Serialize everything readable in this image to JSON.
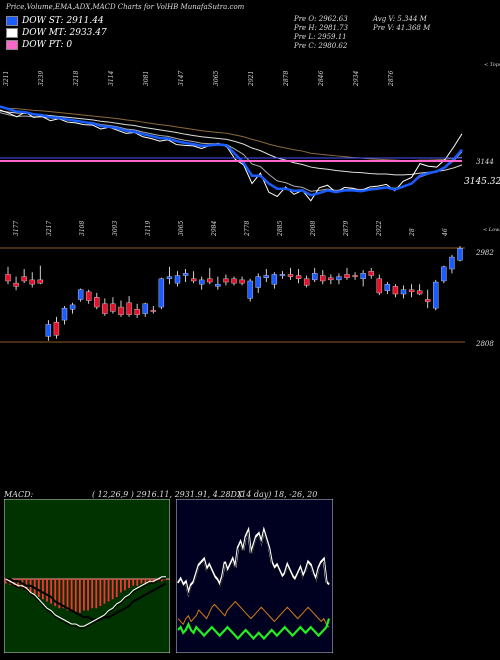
{
  "header": {
    "title": "Price,Volume,EMA,ADX,MACD Charts for VolHB MunafaSutra.com",
    "legend": [
      {
        "label": "DOW ST: 2911.44",
        "color": "#1a5cff"
      },
      {
        "label": "DOW MT: 2933.47",
        "color": "#ffffff"
      },
      {
        "label": "DOW PT: 0",
        "color": "#ff66cc"
      }
    ],
    "prices_left": [
      "Pre   O: 2962.63",
      "Pre   H: 2981.73",
      "Pre   L: 2959.11",
      "Pre   C: 2980.62"
    ],
    "prices_right": [
      "Avg V: 5.344  M",
      "Pre   V: 41.368  M"
    ]
  },
  "chart_data": [
    {
      "type": "line",
      "name": "ema-panel",
      "top_labels": [
        "3211",
        "3239",
        "3218",
        "3114",
        "3081",
        "3147",
        "3065",
        "2921",
        "2878",
        "2846",
        "2934",
        "2876"
      ],
      "bottom_labels": [
        "3177",
        "3217",
        "3108",
        "3093",
        "3119",
        "3065",
        "2984",
        "2778",
        "2885",
        "2908",
        "2879",
        "2922",
        "28",
        "46"
      ],
      "right_labels": [
        "< Tops",
        "3144",
        "3145.32",
        "< Lows"
      ],
      "series": [
        {
          "role": "price",
          "values": [
            3212,
            3205,
            3196,
            3207,
            3195,
            3197,
            3187,
            3192,
            3184,
            3182,
            3178,
            3177,
            3168,
            3172,
            3165,
            3158,
            3160,
            3150,
            3146,
            3140,
            3143,
            3132,
            3130,
            3129,
            3123,
            3130,
            3135,
            3127,
            3098,
            3085,
            3042,
            3066,
            3022,
            3012,
            3034,
            3017,
            3026,
            3002,
            3032,
            3038,
            3021,
            3033,
            3031,
            3026,
            3034,
            3036,
            3040,
            3025,
            3047,
            3056,
            3088,
            3082,
            3080,
            3098,
            3126,
            3157
          ]
        },
        {
          "role": "ema-short",
          "values": [
            3206,
            3201,
            3197,
            3198,
            3196,
            3196,
            3193,
            3192,
            3190,
            3188,
            3185,
            3183,
            3178,
            3176,
            3173,
            3168,
            3166,
            3161,
            3157,
            3153,
            3151,
            3146,
            3142,
            3139,
            3135,
            3134,
            3134,
            3132,
            3121,
            3109,
            3087,
            3081,
            3063,
            3048,
            3044,
            3036,
            3033,
            3024,
            3026,
            3029,
            3026,
            3028,
            3029,
            3028,
            3030,
            3032,
            3034,
            3031,
            3036,
            3042,
            3057,
            3064,
            3069,
            3079,
            3094,
            3115
          ]
        },
        {
          "role": "ema-mid",
          "values": [
            3210,
            3207,
            3205,
            3204,
            3202,
            3201,
            3199,
            3197,
            3195,
            3193,
            3191,
            3189,
            3186,
            3184,
            3181,
            3178,
            3176,
            3172,
            3169,
            3166,
            3163,
            3160,
            3156,
            3153,
            3150,
            3148,
            3146,
            3144,
            3139,
            3133,
            3124,
            3118,
            3109,
            3101,
            3096,
            3090,
            3086,
            3080,
            3077,
            3075,
            3072,
            3070,
            3068,
            3067,
            3065,
            3064,
            3064,
            3062,
            3062,
            3063,
            3066,
            3068,
            3070,
            3073,
            3078,
            3085
          ]
        },
        {
          "role": "ema-long",
          "values": [
            3218,
            3216,
            3215,
            3213,
            3211,
            3210,
            3208,
            3206,
            3204,
            3202,
            3200,
            3198,
            3196,
            3194,
            3192,
            3189,
            3187,
            3184,
            3181,
            3178,
            3176,
            3173,
            3170,
            3167,
            3164,
            3162,
            3160,
            3158,
            3154,
            3150,
            3144,
            3139,
            3133,
            3128,
            3124,
            3120,
            3117,
            3112,
            3110,
            3108,
            3106,
            3104,
            3102,
            3101,
            3099,
            3098,
            3097,
            3096,
            3095,
            3095,
            3096,
            3096,
            3097,
            3098,
            3100,
            3103
          ]
        },
        {
          "role": "ema-blue",
          "values": [
            3220,
            3214,
            3208,
            3207,
            3202,
            3200,
            3195,
            3194,
            3190,
            3187,
            3184,
            3181,
            3175,
            3173,
            3170,
            3164,
            3162,
            3156,
            3152,
            3147,
            3146,
            3140,
            3136,
            3133,
            3129,
            3130,
            3132,
            3130,
            3110,
            3090,
            3060,
            3060,
            3042,
            3030,
            3030,
            3025,
            3026,
            3015,
            3020,
            3026,
            3022,
            3026,
            3026,
            3024,
            3028,
            3030,
            3033,
            3028,
            3035,
            3042,
            3060,
            3066,
            3070,
            3080,
            3098,
            3120
          ]
        }
      ],
      "ylim": [
        2990,
        3235
      ]
    },
    {
      "type": "candlestick",
      "name": "price-panel",
      "right_labels": [
        "2982",
        "2808"
      ],
      "ylim": [
        2795,
        2990
      ],
      "candles": [
        {
          "o": 2934,
          "h": 2948,
          "l": 2916,
          "c": 2922
        },
        {
          "o": 2918,
          "h": 2930,
          "l": 2905,
          "c": 2912
        },
        {
          "o": 2930,
          "h": 2944,
          "l": 2918,
          "c": 2922
        },
        {
          "o": 2924,
          "h": 2938,
          "l": 2910,
          "c": 2916
        },
        {
          "o": 2924,
          "h": 2950,
          "l": 2916,
          "c": 2918
        },
        {
          "o": 2820,
          "h": 2850,
          "l": 2812,
          "c": 2842
        },
        {
          "o": 2846,
          "h": 2856,
          "l": 2816,
          "c": 2822
        },
        {
          "o": 2850,
          "h": 2876,
          "l": 2842,
          "c": 2872
        },
        {
          "o": 2870,
          "h": 2882,
          "l": 2862,
          "c": 2878
        },
        {
          "o": 2888,
          "h": 2908,
          "l": 2884,
          "c": 2906
        },
        {
          "o": 2902,
          "h": 2906,
          "l": 2880,
          "c": 2886
        },
        {
          "o": 2892,
          "h": 2900,
          "l": 2870,
          "c": 2874
        },
        {
          "o": 2880,
          "h": 2890,
          "l": 2858,
          "c": 2862
        },
        {
          "o": 2880,
          "h": 2892,
          "l": 2862,
          "c": 2866
        },
        {
          "o": 2874,
          "h": 2886,
          "l": 2856,
          "c": 2860
        },
        {
          "o": 2882,
          "h": 2894,
          "l": 2856,
          "c": 2860
        },
        {
          "o": 2870,
          "h": 2880,
          "l": 2854,
          "c": 2860
        },
        {
          "o": 2862,
          "h": 2882,
          "l": 2856,
          "c": 2880
        },
        {
          "o": 2868,
          "h": 2876,
          "l": 2862,
          "c": 2866
        },
        {
          "o": 2874,
          "h": 2928,
          "l": 2870,
          "c": 2926
        },
        {
          "o": 2926,
          "h": 2948,
          "l": 2916,
          "c": 2930
        },
        {
          "o": 2918,
          "h": 2940,
          "l": 2912,
          "c": 2932
        },
        {
          "o": 2932,
          "h": 2944,
          "l": 2920,
          "c": 2936
        },
        {
          "o": 2926,
          "h": 2940,
          "l": 2918,
          "c": 2922
        },
        {
          "o": 2916,
          "h": 2930,
          "l": 2906,
          "c": 2924
        },
        {
          "o": 2926,
          "h": 2946,
          "l": 2916,
          "c": 2920
        },
        {
          "o": 2912,
          "h": 2930,
          "l": 2906,
          "c": 2916
        },
        {
          "o": 2926,
          "h": 2934,
          "l": 2914,
          "c": 2920
        },
        {
          "o": 2926,
          "h": 2930,
          "l": 2914,
          "c": 2918
        },
        {
          "o": 2924,
          "h": 2930,
          "l": 2914,
          "c": 2918
        },
        {
          "o": 2890,
          "h": 2926,
          "l": 2884,
          "c": 2922
        },
        {
          "o": 2910,
          "h": 2936,
          "l": 2900,
          "c": 2930
        },
        {
          "o": 2928,
          "h": 2944,
          "l": 2920,
          "c": 2932
        },
        {
          "o": 2916,
          "h": 2938,
          "l": 2908,
          "c": 2934
        },
        {
          "o": 2932,
          "h": 2940,
          "l": 2926,
          "c": 2934
        },
        {
          "o": 2934,
          "h": 2946,
          "l": 2924,
          "c": 2930
        },
        {
          "o": 2932,
          "h": 2944,
          "l": 2918,
          "c": 2926
        },
        {
          "o": 2926,
          "h": 2932,
          "l": 2910,
          "c": 2914
        },
        {
          "o": 2924,
          "h": 2946,
          "l": 2920,
          "c": 2936
        },
        {
          "o": 2932,
          "h": 2942,
          "l": 2916,
          "c": 2922
        },
        {
          "o": 2928,
          "h": 2934,
          "l": 2916,
          "c": 2924
        },
        {
          "o": 2924,
          "h": 2936,
          "l": 2916,
          "c": 2930
        },
        {
          "o": 2934,
          "h": 2946,
          "l": 2924,
          "c": 2928
        },
        {
          "o": 2932,
          "h": 2938,
          "l": 2924,
          "c": 2930
        },
        {
          "o": 2926,
          "h": 2942,
          "l": 2912,
          "c": 2936
        },
        {
          "o": 2940,
          "h": 2946,
          "l": 2926,
          "c": 2932
        },
        {
          "o": 2926,
          "h": 2934,
          "l": 2896,
          "c": 2900
        },
        {
          "o": 2904,
          "h": 2920,
          "l": 2898,
          "c": 2916
        },
        {
          "o": 2912,
          "h": 2916,
          "l": 2892,
          "c": 2898
        },
        {
          "o": 2898,
          "h": 2914,
          "l": 2890,
          "c": 2906
        },
        {
          "o": 2906,
          "h": 2916,
          "l": 2892,
          "c": 2902
        },
        {
          "o": 2904,
          "h": 2916,
          "l": 2896,
          "c": 2898
        },
        {
          "o": 2888,
          "h": 2906,
          "l": 2872,
          "c": 2884
        },
        {
          "o": 2872,
          "h": 2924,
          "l": 2868,
          "c": 2920
        },
        {
          "o": 2922,
          "h": 2950,
          "l": 2918,
          "c": 2948
        },
        {
          "o": 2944,
          "h": 2970,
          "l": 2936,
          "c": 2966
        },
        {
          "o": 2960,
          "h": 2986,
          "l": 2958,
          "c": 2982
        }
      ]
    },
    {
      "type": "macd",
      "name": "macd-panel",
      "label": "MACD:",
      "params": "( 12,26,9 ) 2916.11,  2931.91,  4.28DX",
      "hist": [
        -2,
        -2.5,
        -3,
        -3.5,
        -4,
        -5,
        -6,
        -7,
        -8,
        -9,
        -10,
        -11,
        -12,
        -13,
        -13,
        -14,
        -14,
        -15,
        -15,
        -14,
        -14,
        -13,
        -13,
        -12,
        -11,
        -10,
        -9,
        -8,
        -6,
        -5,
        -4,
        -3,
        -3,
        -2,
        -2,
        -1.5,
        -1.5,
        -1,
        -1,
        -0.5
      ],
      "macd": [
        0,
        -1,
        -2,
        -3,
        -3,
        -4,
        -6,
        -7,
        -9,
        -11,
        -13,
        -14,
        -16,
        -17,
        -18,
        -19,
        -20,
        -20,
        -21,
        -21,
        -20,
        -19,
        -18,
        -17,
        -16,
        -14,
        -13,
        -11,
        -10,
        -8,
        -7,
        -5,
        -4,
        -3,
        -2,
        -1,
        -1,
        0,
        1,
        1
      ],
      "signal": [
        0,
        0,
        -1,
        -1,
        -2,
        -3,
        -3,
        -4,
        -5,
        -6,
        -7,
        -8,
        -10,
        -11,
        -12,
        -13,
        -14,
        -15,
        -16,
        -17,
        -17,
        -18,
        -18,
        -18,
        -17,
        -17,
        -16,
        -15,
        -14,
        -13,
        -12,
        -10,
        -9,
        -8,
        -7,
        -6,
        -5,
        -4,
        -3,
        -2
      ],
      "ylim": [
        -30,
        10
      ]
    },
    {
      "type": "adx",
      "name": "adx-panel",
      "params": "(14 day)  18,  -26,  20",
      "white": [
        45,
        48,
        44,
        46,
        38,
        44,
        46,
        52,
        58,
        60,
        62,
        55,
        58,
        54,
        50,
        48,
        44,
        50,
        60,
        54,
        58,
        62,
        56,
        70,
        74,
        68,
        78,
        82,
        66,
        72,
        78,
        80,
        74,
        82,
        76,
        70,
        60,
        56,
        58,
        54,
        50,
        52,
        58,
        54,
        50,
        48,
        52,
        56,
        50,
        54,
        60,
        58,
        52,
        48,
        56,
        60,
        62,
        46,
        44
      ],
      "orange": [
        20,
        18,
        16,
        20,
        22,
        18,
        20,
        22,
        26,
        24,
        22,
        20,
        24,
        28,
        30,
        28,
        26,
        24,
        22,
        26,
        28,
        30,
        32,
        30,
        28,
        26,
        24,
        22,
        20,
        22,
        24,
        26,
        28,
        26,
        24,
        22,
        20,
        18,
        20,
        22,
        24,
        26,
        28,
        26,
        24,
        22,
        20,
        22,
        24,
        26,
        28,
        26,
        24,
        22,
        20,
        18,
        20,
        16,
        14
      ],
      "green": [
        12,
        14,
        10,
        12,
        16,
        12,
        10,
        14,
        12,
        10,
        8,
        10,
        12,
        14,
        12,
        10,
        8,
        10,
        12,
        14,
        12,
        10,
        8,
        6,
        8,
        10,
        12,
        10,
        8,
        6,
        8,
        10,
        8,
        6,
        8,
        10,
        12,
        10,
        8,
        10,
        12,
        14,
        12,
        10,
        8,
        10,
        12,
        14,
        12,
        10,
        12,
        14,
        12,
        10,
        8,
        10,
        12,
        14,
        20
      ],
      "ylim": [
        0,
        100
      ]
    }
  ]
}
